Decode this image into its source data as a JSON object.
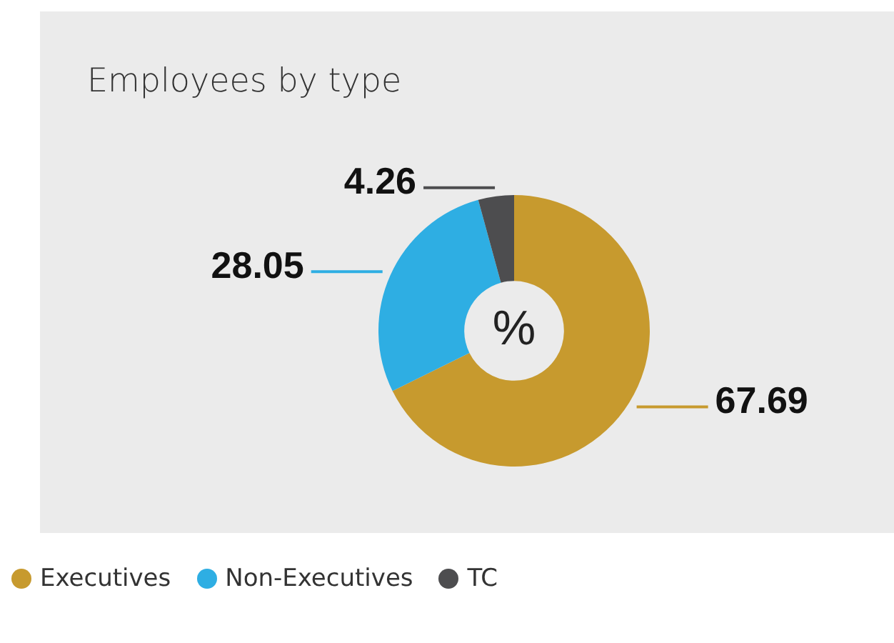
{
  "chart_data": {
    "type": "donut",
    "title": "Employees by type",
    "categories": [
      "Executives",
      "Non-Executives",
      "TC"
    ],
    "values": [
      67.69,
      28.05,
      4.26
    ],
    "colors": [
      "#c79a2e",
      "#2eaee3",
      "#4d4d4f"
    ],
    "data_labels": true,
    "legend": "bottom left",
    "annotations": [
      "%"
    ]
  }
}
